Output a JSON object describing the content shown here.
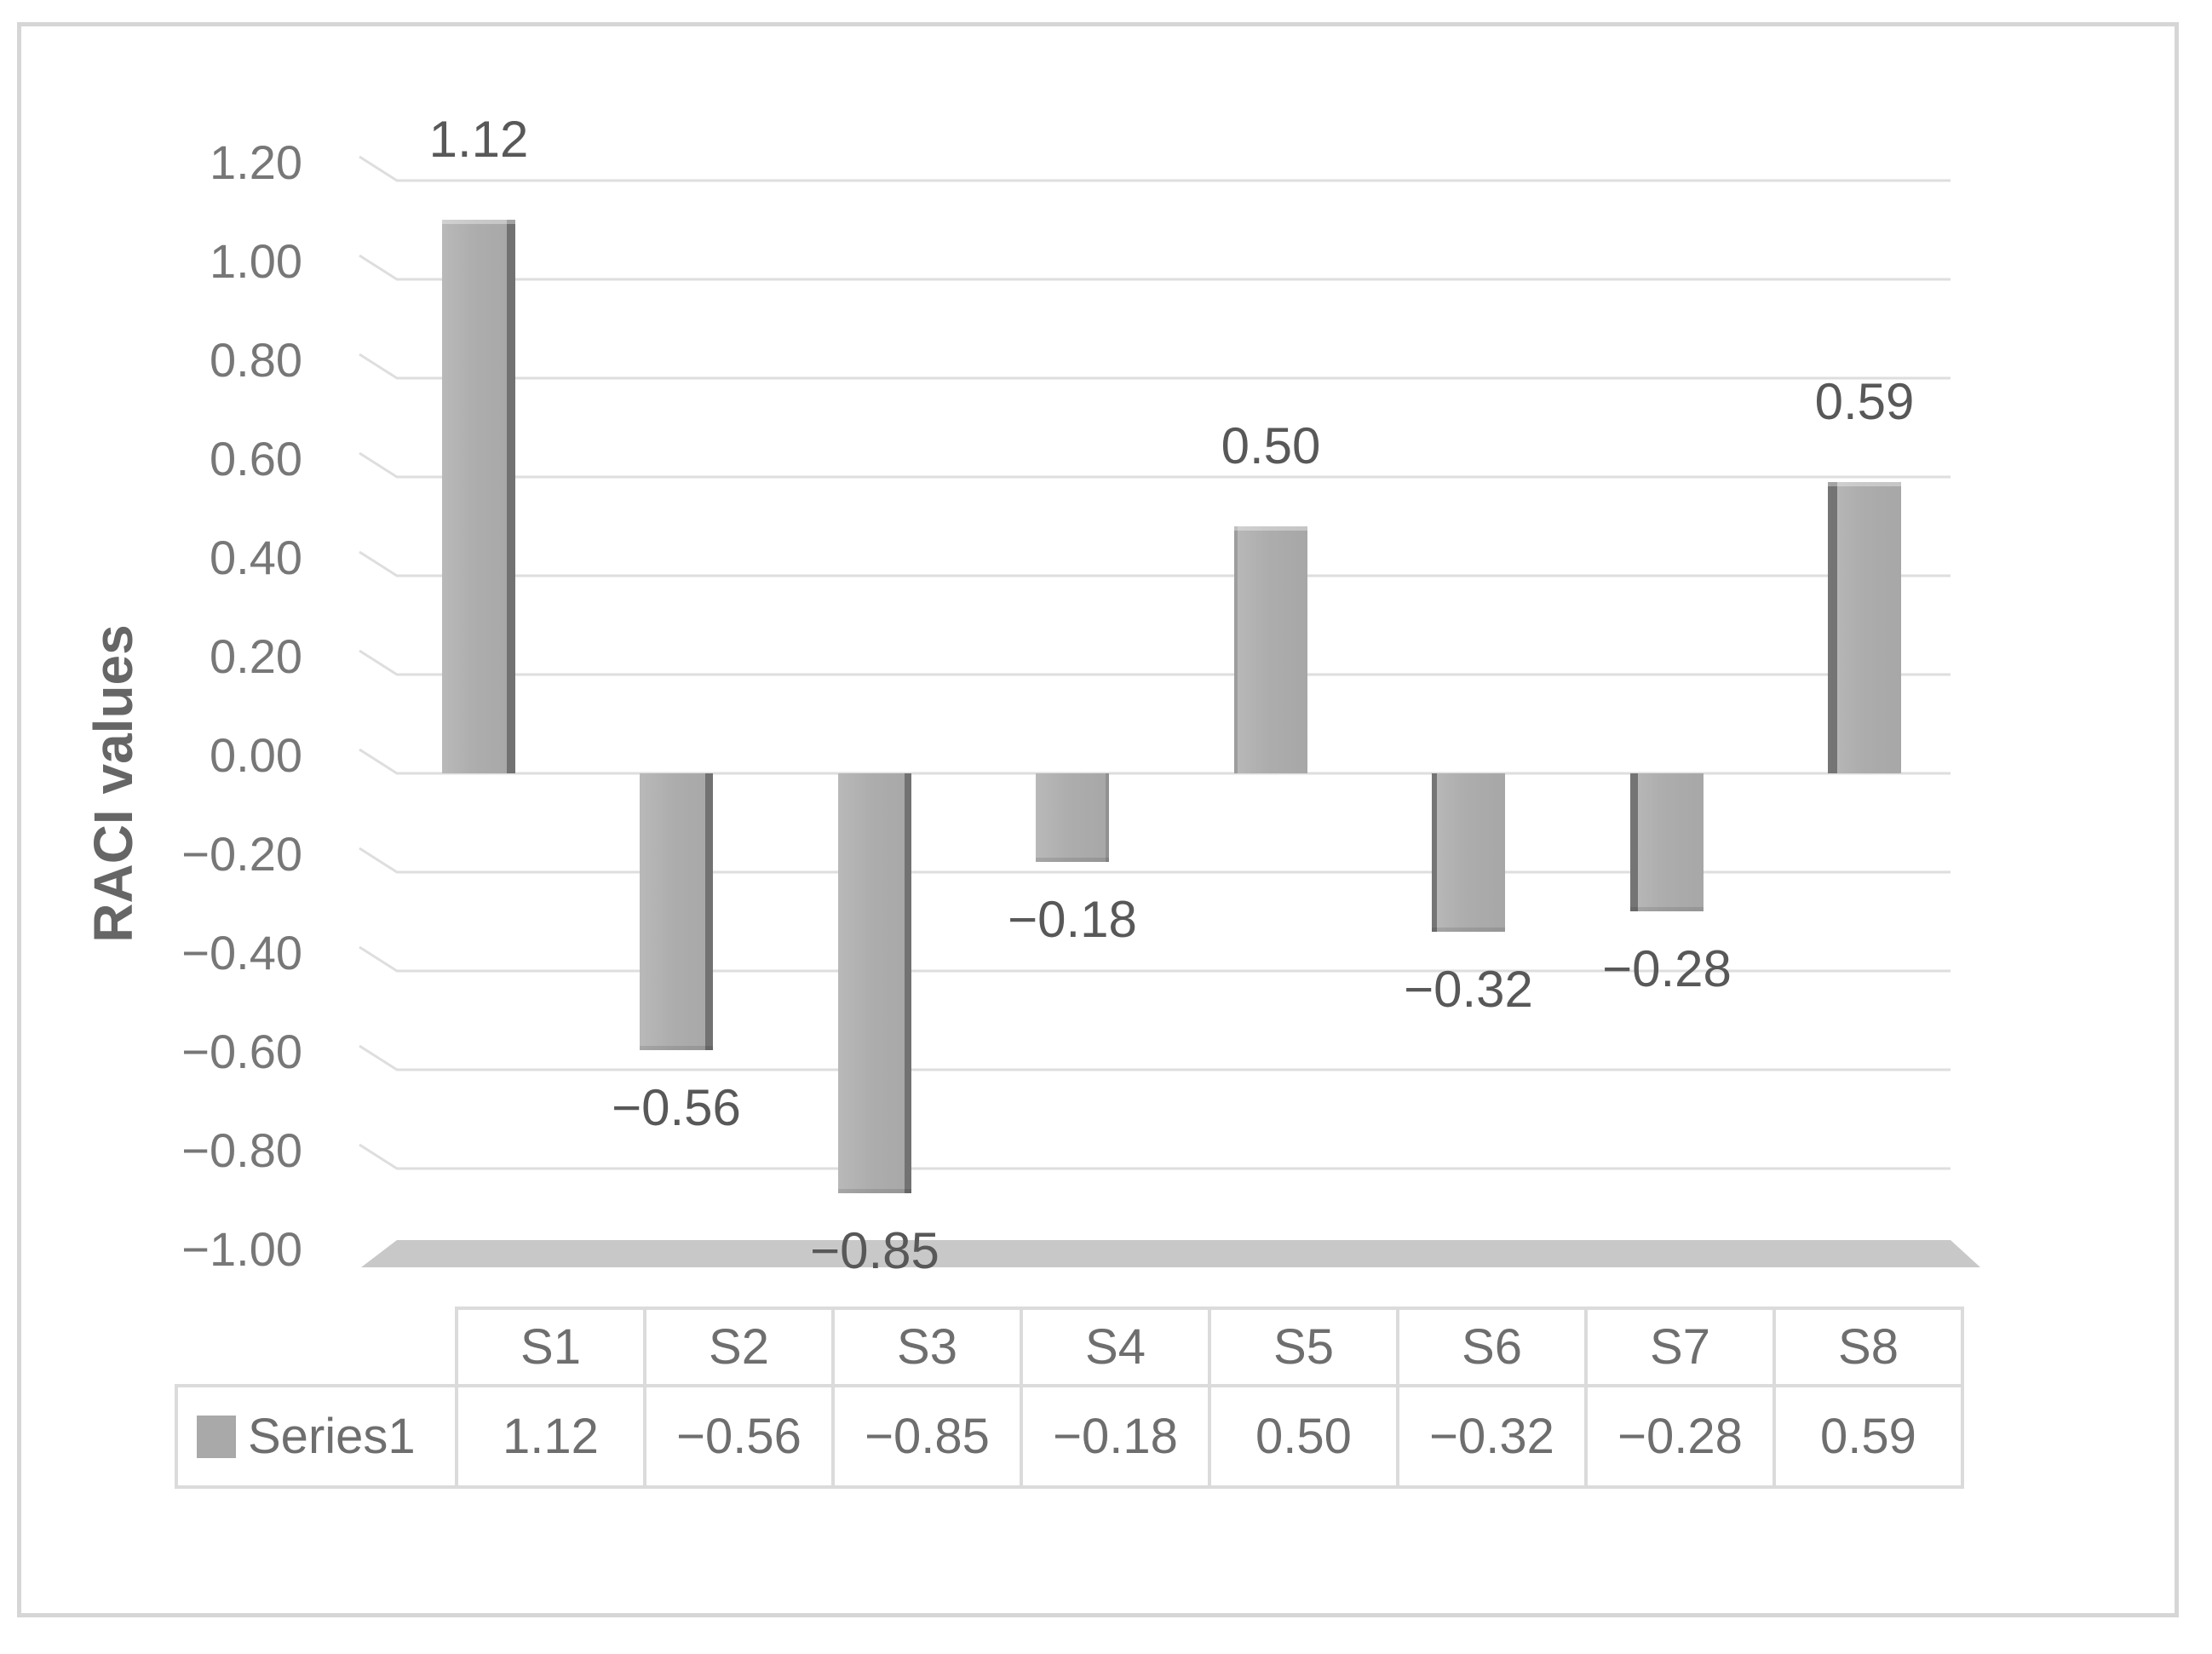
{
  "figure": {
    "background": "#FFFFFF",
    "border_color": "#D6D6D6"
  },
  "chart_data": {
    "type": "bar",
    "title": "",
    "xlabel": "",
    "ylabel": "RACI values",
    "categories": [
      "S1",
      "S2",
      "S3",
      "S4",
      "S5",
      "S6",
      "S7",
      "S8"
    ],
    "series": [
      {
        "name": "Series1",
        "values": [
          1.12,
          -0.56,
          -0.85,
          -0.18,
          0.5,
          -0.32,
          -0.28,
          0.59
        ]
      }
    ],
    "data_labels": [
      "1.12",
      "−0.56",
      "−0.85",
      "−0.18",
      "0.50",
      "−0.32",
      "−0.28",
      "0.59"
    ],
    "y_ticks": [
      {
        "label": "1.20",
        "value": 1.2
      },
      {
        "label": "1.00",
        "value": 1.0
      },
      {
        "label": "0.80",
        "value": 0.8
      },
      {
        "label": "0.60",
        "value": 0.6
      },
      {
        "label": "0.40",
        "value": 0.4
      },
      {
        "label": "0.20",
        "value": 0.2
      },
      {
        "label": "0.00",
        "value": 0.0
      },
      {
        "label": "−0.20",
        "value": -0.2
      },
      {
        "label": "−0.40",
        "value": -0.4
      },
      {
        "label": "−0.60",
        "value": -0.6
      },
      {
        "label": "−0.80",
        "value": -0.8
      },
      {
        "label": "−1.00",
        "value": -1.0
      }
    ],
    "ylim": [
      -1.0,
      1.2
    ],
    "grid": true,
    "style": "3d-column",
    "legend_position": "bottom-table"
  },
  "table": {
    "columns": [
      "S1",
      "S2",
      "S3",
      "S4",
      "S5",
      "S6",
      "S7",
      "S8"
    ],
    "rows": [
      {
        "legend": "Series1",
        "swatch_color": "#A9A9A9",
        "values": [
          "1.12",
          "−0.56",
          "−0.85",
          "−0.18",
          "0.50",
          "−0.32",
          "−0.28",
          "0.59"
        ]
      }
    ]
  },
  "colors": {
    "bar": "#ACACAC",
    "bar_edge": "#696969",
    "gridline": "#DEDEDE",
    "floor": "#C8C8C8",
    "tick_text": "#777777",
    "data_label_text": "#585858",
    "axis_title_text": "#666666",
    "table_text": "#6E6E6E",
    "table_border": "#DBDBDB",
    "frame_border": "#D6D6D6"
  }
}
